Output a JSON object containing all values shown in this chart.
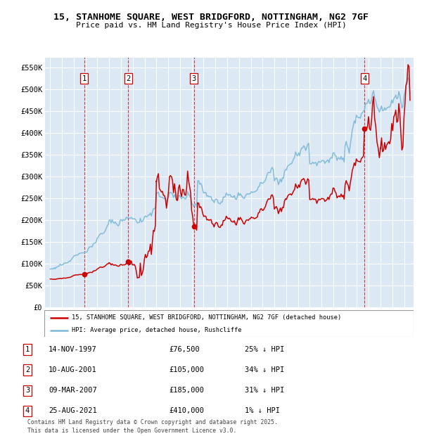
{
  "title_line1": "15, STANHOME SQUARE, WEST BRIDGFORD, NOTTINGHAM, NG2 7GF",
  "title_line2": "Price paid vs. HM Land Registry's House Price Index (HPI)",
  "bg_color": "#dce9f5",
  "red_color": "#cc0000",
  "blue_color": "#7ab8d9",
  "sale_dates_num": [
    1997.87,
    2001.61,
    2007.19,
    2021.65
  ],
  "sale_prices": [
    76500,
    105000,
    185000,
    410000
  ],
  "sale_labels": [
    "1",
    "2",
    "3",
    "4"
  ],
  "legend_line1": "15, STANHOME SQUARE, WEST BRIDGFORD, NOTTINGHAM, NG2 7GF (detached house)",
  "legend_line2": "HPI: Average price, detached house, Rushcliffe",
  "table_data": [
    [
      "1",
      "14-NOV-1997",
      "£76,500",
      "25% ↓ HPI"
    ],
    [
      "2",
      "10-AUG-2001",
      "£105,000",
      "34% ↓ HPI"
    ],
    [
      "3",
      "09-MAR-2007",
      "£185,000",
      "31% ↓ HPI"
    ],
    [
      "4",
      "25-AUG-2021",
      "£410,000",
      "1% ↓ HPI"
    ]
  ],
  "footer": "Contains HM Land Registry data © Crown copyright and database right 2025.\nThis data is licensed under the Open Government Licence v3.0.",
  "ylim": [
    0,
    575000
  ],
  "yticks": [
    0,
    50000,
    100000,
    150000,
    200000,
    250000,
    300000,
    350000,
    400000,
    450000,
    500000,
    550000
  ],
  "ytick_labels": [
    "£0",
    "£50K",
    "£100K",
    "£150K",
    "£200K",
    "£250K",
    "£300K",
    "£350K",
    "£400K",
    "£450K",
    "£500K",
    "£550K"
  ],
  "xlim_start": 1994.5,
  "xlim_end": 2025.8
}
